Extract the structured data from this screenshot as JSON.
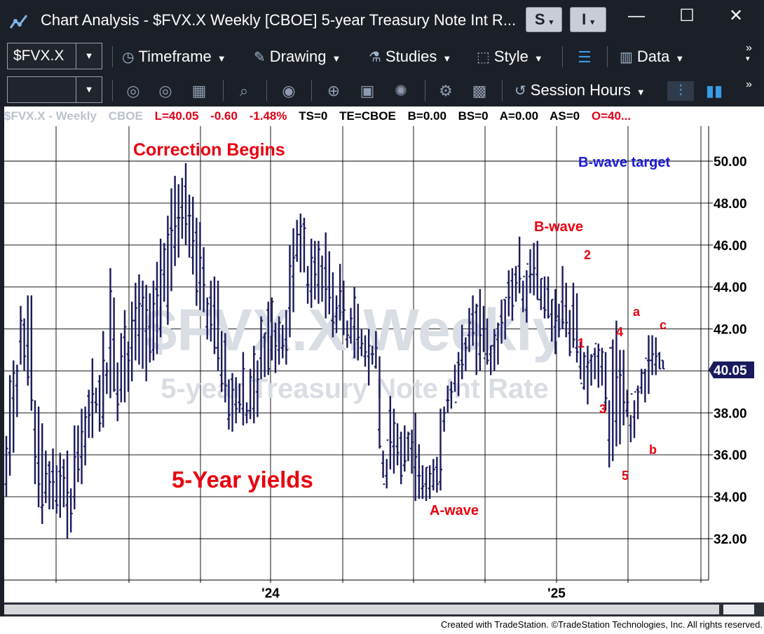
{
  "window": {
    "title": "Chart Analysis - $FVX.X Weekly [CBOE] 5-year Treasury Note Int R...",
    "btn_s": "S",
    "btn_i": "I",
    "minimize": "—",
    "maximize": "☐",
    "close": "✕"
  },
  "toolbar1": {
    "symbol": "$FVX.X",
    "timeframe": "Timeframe",
    "drawing": "Drawing",
    "studies": "Studies",
    "style": "Style",
    "data": "Data",
    "more": "»"
  },
  "toolbar2": {
    "symbol": "",
    "session_hours": "Session Hours"
  },
  "info": {
    "symbol": "$FVX.X - Weekly",
    "exchange": "CBOE",
    "last": "L=40.05",
    "change": "-0.60",
    "pct_change": "-1.48%",
    "ts": "TS=0",
    "te": "TE=CBOE",
    "bid": "B=0.00",
    "bs": "BS=0",
    "ask": "A=0.00",
    "as": "AS=0",
    "open": "O=40..."
  },
  "colors": {
    "bars": "#1a1a5e",
    "annotation_red": "#e8000f",
    "annotation_blue": "#1b1bd6",
    "price_tag": "#1a1a5e",
    "grid": "#000000",
    "watermark": "#d9dde4"
  },
  "chart_data": {
    "type": "bar",
    "chart_style": "OHLC weekly bars",
    "title": "",
    "watermark_symbol": "$FVX.X,Weekly",
    "watermark_desc": "5-year Treasury Note Int Rate",
    "ylim": [
      31,
      51
    ],
    "y_ticks": [
      "50.00",
      "48.00",
      "46.00",
      "44.00",
      "42.00",
      "40.00",
      "38.00",
      "36.00",
      "34.00",
      "32.00"
    ],
    "last_price": "40.05",
    "x_labels": [
      "'24",
      "'25"
    ],
    "grid": true,
    "annotations": [
      {
        "text": "Correction Begins",
        "color": "red"
      },
      {
        "text": "5-Year yields",
        "color": "red"
      },
      {
        "text": "B-wave target",
        "color": "blue"
      },
      {
        "text": "B-wave",
        "color": "red"
      },
      {
        "text": "A-wave",
        "color": "red"
      },
      {
        "text": "1",
        "color": "red"
      },
      {
        "text": "2",
        "color": "red"
      },
      {
        "text": "3",
        "color": "red"
      },
      {
        "text": "4",
        "color": "red"
      },
      {
        "text": "5",
        "color": "red"
      },
      {
        "text": "a",
        "color": "red"
      },
      {
        "text": "b",
        "color": "red"
      },
      {
        "text": "c",
        "color": "red"
      }
    ],
    "series": [
      {
        "high": [
          36.9,
          39.8,
          40.5,
          40.3,
          43.1,
          42.5,
          43.6,
          43.6,
          38.6,
          38.3,
          37.5,
          36.2,
          35.7,
          36.3,
          35.5,
          36.1,
          35.8,
          36.2,
          34.4,
          37.4,
          37.4,
          38.2,
          38.3,
          39.1,
          40.6,
          39.2,
          39.8,
          41.9,
          40.4,
          44.9,
          43.5,
          40.4,
          41.8,
          42.9,
          41.4,
          43.3,
          44.2,
          44.6,
          44.3,
          44.1,
          43.7,
          44.3,
          45.2,
          46.3,
          46.1,
          47.4,
          48.7,
          49.3,
          48.9,
          49.2,
          49.9,
          48.4,
          48.3,
          47.3,
          47.1,
          45.9,
          43.5,
          44.3,
          44.5,
          44.3,
          41.9,
          41.8,
          39.6,
          39.9,
          39.7,
          39.4,
          40.9,
          38.5,
          40.1,
          41.2,
          40.5,
          42.6,
          41.8,
          43.3,
          43.5,
          42.3,
          42.6,
          42.2,
          42.9,
          46.0,
          46.8,
          47.2,
          47.5,
          47.3,
          45.0,
          46.3,
          46.2,
          46.2,
          45.5,
          46.6,
          45.7,
          44.7,
          43.6,
          45.1,
          44.3,
          42.4,
          43.0,
          44.0,
          43.2,
          42.0,
          41.7,
          42.0,
          41.2,
          41.9,
          40.7,
          36.2,
          35.8,
          38.8,
          38.2,
          37.5,
          37.1,
          37.4,
          37.1,
          37.2,
          38.0,
          36.5,
          35.5,
          35.4,
          35.5,
          35.8,
          35.9,
          38.2,
          38.3,
          39.3,
          39.5,
          40.3,
          40.9,
          42.2,
          41.6,
          43.0,
          43.6,
          43.2,
          43.9,
          43.1,
          42.5,
          41.2,
          42.0,
          42.3,
          43.4,
          43.4,
          44.8,
          44.9,
          45.0,
          46.4,
          44.3,
          44.8,
          45.8,
          46.1,
          46.2,
          44.4,
          44.5,
          44.5,
          43.4,
          43.9,
          43.2,
          45.0,
          44.2,
          42.9,
          44.2,
          43.7,
          41.4,
          40.9,
          41.2,
          40.8,
          41.1,
          41.3,
          41.1,
          40.9,
          38.6,
          41.5,
          42.4,
          41.0,
          41.0,
          39.1,
          37.9,
          38.6,
          39.3,
          40.1,
          40.1,
          41.7,
          41.7,
          41.6,
          40.9,
          40.5
        ]
      },
      {
        "low": [
          34.0,
          35.0,
          36.1,
          37.8,
          40.3,
          40.0,
          39.3,
          38.1,
          34.6,
          33.5,
          32.7,
          33.7,
          33.4,
          33.4,
          33.2,
          33.0,
          33.5,
          32.0,
          32.3,
          33.4,
          34.7,
          34.6,
          35.5,
          36.8,
          36.8,
          38.0,
          37.1,
          37.3,
          38.9,
          38.7,
          39.0,
          37.6,
          38.5,
          38.5,
          39.0,
          39.5,
          40.5,
          40.3,
          40.1,
          39.5,
          40.4,
          40.5,
          40.8,
          41.6,
          43.3,
          42.2,
          43.8,
          45.0,
          45.4,
          46.3,
          46.0,
          45.4,
          44.6,
          43.1,
          42.9,
          42.8,
          41.5,
          41.4,
          40.8,
          40.0,
          39.0,
          38.5,
          37.2,
          37.1,
          37.5,
          38.0,
          37.4,
          37.5,
          37.7,
          37.5,
          37.8,
          39.6,
          39.7,
          39.8,
          40.5,
          39.9,
          40.3,
          40.6,
          40.3,
          41.6,
          42.8,
          45.2,
          44.7,
          44.7,
          43.2,
          43.0,
          43.4,
          43.2,
          43.3,
          42.5,
          42.7,
          41.6,
          41.8,
          42.4,
          41.7,
          41.1,
          41.3,
          40.6,
          40.5,
          40.7,
          40.2,
          39.3,
          40.3,
          40.1,
          36.3,
          34.9,
          34.4,
          35.3,
          35.1,
          35.5,
          34.6,
          35.2,
          35.7,
          35.1,
          33.8,
          33.9,
          33.9,
          33.8,
          33.9,
          34.3,
          34.2,
          34.3,
          37.1,
          38.0,
          38.2,
          39.0,
          38.8,
          39.6,
          40.0,
          40.9,
          41.2,
          39.8,
          40.0,
          40.9,
          40.3,
          39.8,
          40.0,
          40.3,
          41.3,
          41.5,
          42.6,
          42.4,
          43.3,
          43.7,
          42.8,
          42.3,
          43.7,
          43.6,
          43.4,
          42.9,
          42.5,
          42.5,
          41.4,
          40.8,
          41.6,
          42.0,
          41.6,
          40.7,
          41.1,
          40.4,
          39.6,
          39.1,
          38.4,
          39.3,
          39.6,
          39.2,
          39.3,
          38.1,
          35.4,
          35.7,
          36.4,
          36.5,
          37.4,
          37.8,
          36.6,
          36.8,
          37.7,
          38.9,
          38.5,
          38.9,
          39.8,
          39.8,
          40.1,
          40.1
        ]
      },
      {
        "open": [
          34.6,
          36.1,
          38.7,
          39.3,
          41.4,
          42.2,
          41.2,
          40.0,
          37.2,
          35.6,
          33.5,
          34.2,
          35.5,
          35.2,
          33.8,
          35.2,
          35.4,
          33.6,
          34.0,
          34.0,
          36.1,
          35.9,
          36.4,
          38.8,
          38.5,
          38.5,
          39.5,
          37.8,
          39.8,
          41.1,
          41.5,
          38.9,
          39.1,
          41.6,
          40.8,
          41.1,
          42.4,
          41.7,
          43.1,
          41.9,
          42.1,
          41.0,
          43.9,
          42.0,
          44.6,
          43.1,
          46.8,
          45.9,
          47.3,
          47.8,
          48.8,
          47.4,
          45.4,
          46.6,
          44.2,
          44.9,
          42.1,
          43.5,
          43.1,
          41.1,
          39.8,
          41.4,
          37.7,
          39.6,
          38.4,
          38.5,
          38.2,
          37.9,
          38.1,
          38.2,
          39.0,
          40.6,
          41.6,
          42.9,
          41.0,
          41.9,
          41.0,
          41.1,
          41.5,
          43.0,
          44.5,
          45.5,
          46.5,
          47.0,
          44.1,
          43.8,
          45.2,
          44.1,
          45.0,
          44.9,
          44.0,
          42.4,
          42.6,
          43.1,
          42.8,
          41.5,
          41.6,
          42.1,
          41.5,
          41.1,
          40.7,
          40.7,
          40.8,
          40.2,
          37.2,
          35.6,
          35.0,
          38.1,
          36.4,
          36.4,
          36.8,
          35.5,
          36.8,
          36.3,
          35.4,
          35.0,
          34.4,
          34.6,
          34.4,
          34.5,
          35.4,
          34.7,
          37.6,
          38.6,
          39.1,
          39.4,
          40.4,
          40.5,
          41.3,
          41.7,
          42.7,
          42.8,
          40.8,
          42.0,
          40.8,
          40.8,
          41.2,
          41.5,
          42.6,
          43.4,
          44.2,
          44.3,
          44.6,
          45.0,
          43.4,
          42.9,
          44.5,
          44.6,
          44.6,
          43.4,
          43.0,
          43.9,
          42.7,
          42.1,
          42.6,
          43.3,
          43.1,
          41.8,
          43.1,
          41.1,
          40.2,
          39.2,
          40.2,
          40.5,
          40.8,
          40.7,
          40.2,
          38.5,
          36.7,
          41.1,
          37.6,
          40.0,
          40.0,
          38.1,
          37.4,
          37.8,
          39.1,
          39.2,
          39.9,
          40.5,
          40.5,
          40.3,
          40.8,
          40.5
        ]
      },
      {
        "close": [
          36.3,
          39.5,
          39.9,
          40.0,
          42.4,
          40.7,
          39.7,
          38.6,
          35.9,
          34.6,
          33.6,
          35.1,
          34.7,
          34.7,
          33.6,
          35.0,
          34.9,
          34.2,
          33.2,
          35.9,
          35.3,
          37.1,
          37.8,
          37.9,
          38.9,
          38.4,
          37.5,
          40.5,
          40.0,
          43.8,
          39.1,
          38.4,
          40.7,
          42.1,
          40.5,
          42.4,
          43.0,
          43.2,
          43.5,
          42.9,
          40.9,
          43.2,
          43.6,
          44.8,
          45.8,
          46.5,
          46.7,
          46.9,
          47.3,
          47.3,
          47.0,
          47.4,
          46.2,
          43.8,
          45.4,
          44.1,
          43.2,
          42.2,
          41.1,
          40.6,
          39.4,
          39.3,
          37.9,
          39.1,
          38.2,
          38.4,
          40.1,
          38.1,
          39.7,
          40.8,
          39.6,
          42.4,
          41.8,
          40.1,
          43.3,
          41.2,
          42.3,
          41.2,
          41.0,
          45.0,
          45.4,
          46.5,
          46.9,
          46.8,
          44.1,
          45.4,
          44.6,
          45.8,
          44.0,
          43.9,
          43.5,
          42.3,
          43.0,
          43.8,
          42.9,
          41.7,
          42.5,
          43.5,
          41.6,
          41.3,
          40.9,
          41.2,
          40.8,
          41.1,
          36.4,
          34.6,
          36.7,
          36.6,
          37.5,
          36.1,
          35.0,
          35.7,
          37.0,
          36.6,
          35.9,
          35.0,
          34.5,
          35.4,
          35.1,
          35.3,
          34.6,
          35.3,
          38.0,
          38.6,
          39.0,
          38.5,
          40.3,
          40.3,
          41.1,
          42.3,
          41.8,
          43.1,
          41.7,
          40.6,
          40.5,
          41.2,
          41.7,
          42.2,
          42.3,
          43.5,
          43.5,
          43.1,
          44.2,
          44.4,
          44.5,
          45.1,
          44.6,
          44.9,
          43.4,
          44.4,
          42.9,
          42.6,
          43.4,
          42.4,
          42.0,
          42.3,
          42.3,
          40.9,
          41.5,
          40.9,
          39.4,
          40.7,
          40.4,
          40.7,
          41.3,
          41.0,
          40.9,
          38.7,
          41.1,
          38.0,
          39.7,
          39.8,
          38.5,
          38.5,
          38.9,
          39.0,
          39.0,
          39.9,
          40.6,
          40.5,
          40.8,
          40.7,
          40.1,
          40.1
        ]
      }
    ]
  },
  "footer": {
    "credit": "Created with TradeStation. ©TradeStation Technologies, Inc. All rights reserved."
  }
}
